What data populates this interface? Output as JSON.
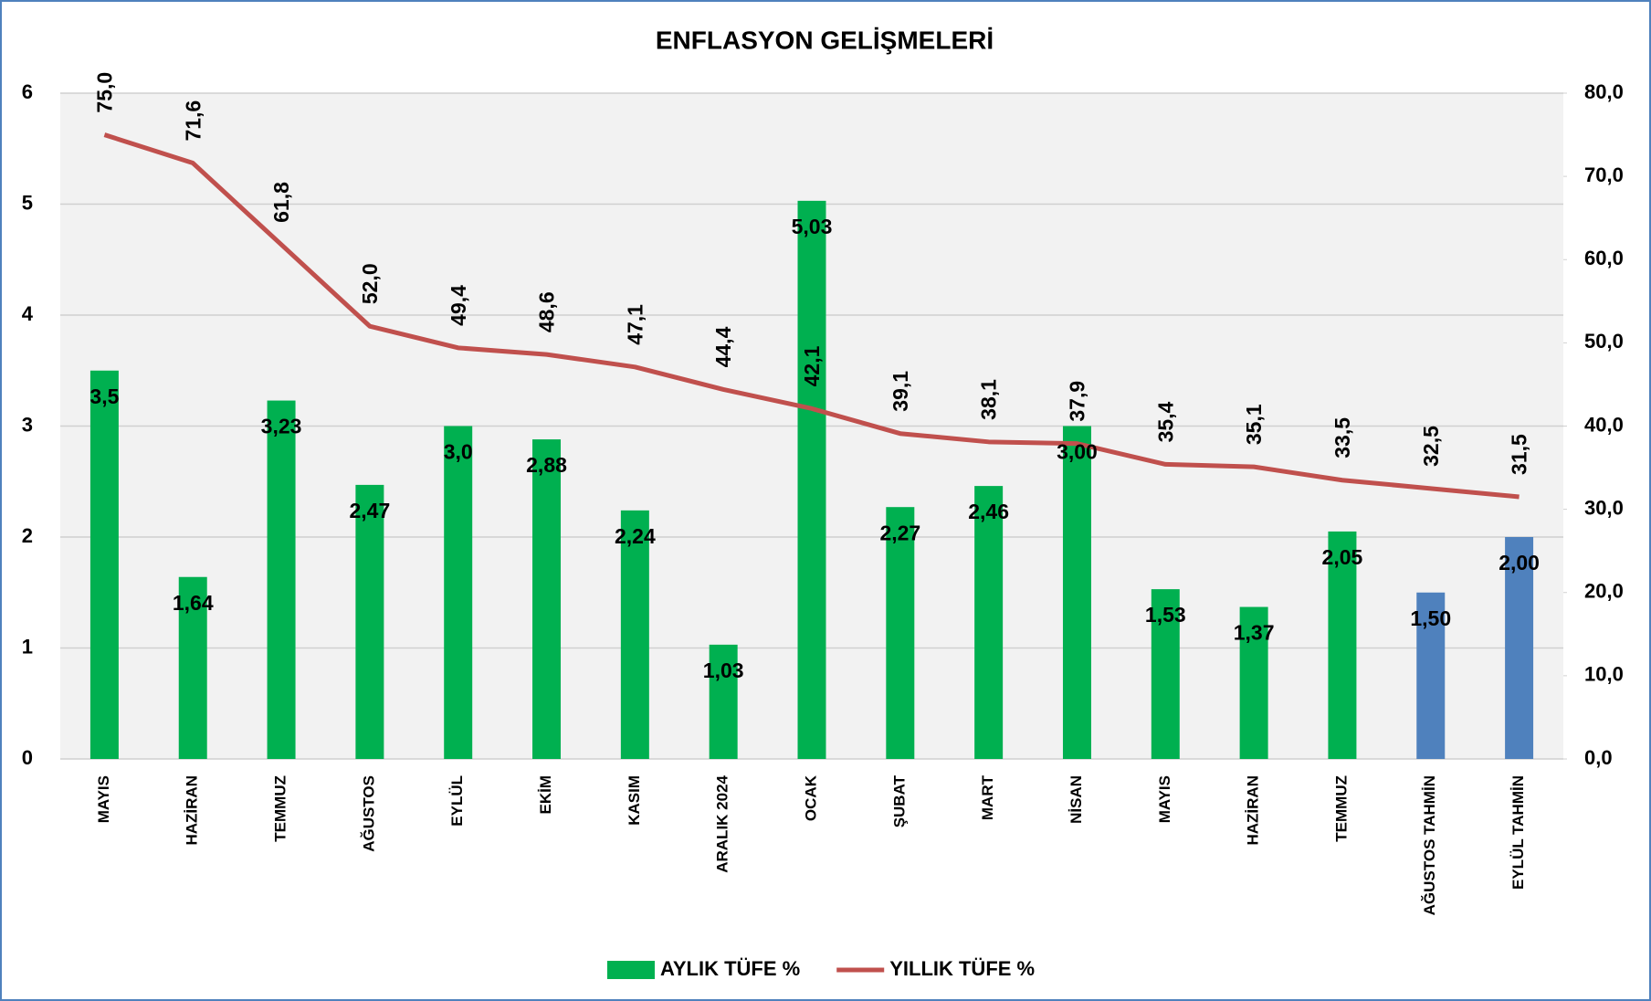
{
  "chart_data": {
    "type": "bar_line",
    "title": "ENFLASYON GELİŞMELERİ",
    "categories": [
      "MAYIS",
      "HAZİRAN",
      "TEMMUZ",
      "AĞUSTOS",
      "EYLÜL",
      "EKİM",
      "KASIM",
      "ARALIK 2024",
      "OCAK",
      "ŞUBAT",
      "MART",
      "NİSAN",
      "MAYIS",
      "HAZİRAN",
      "TEMMUZ",
      "AĞUSTOS TAHMİN",
      "EYLÜL TAHMİN"
    ],
    "series": [
      {
        "name": "AYLIK TÜFE %",
        "type": "bar",
        "color": "#00b050",
        "colors": [
          "#00b050",
          "#00b050",
          "#00b050",
          "#00b050",
          "#00b050",
          "#00b050",
          "#00b050",
          "#00b050",
          "#00b050",
          "#00b050",
          "#00b050",
          "#00b050",
          "#00b050",
          "#00b050",
          "#00b050",
          "#4f81bd",
          "#4f81bd"
        ],
        "values": [
          3.5,
          1.64,
          3.23,
          2.47,
          3.0,
          2.88,
          2.24,
          1.03,
          5.03,
          2.27,
          2.46,
          3.0,
          1.53,
          1.37,
          2.05,
          1.5,
          2.0
        ],
        "value_labels": [
          "3,5",
          "1,64",
          "3,23",
          "2,47",
          "3,0",
          "2,88",
          "2,24",
          "1,03",
          "5,03",
          "2,27",
          "2,46",
          "3,00",
          "1,53",
          "1,37",
          "2,05",
          "1,50",
          "2,00"
        ]
      },
      {
        "name": "YILLIK TÜFE %",
        "type": "line",
        "axis": "y2",
        "color": "#c0504d",
        "values": [
          75.0,
          71.6,
          61.8,
          52.0,
          49.4,
          48.6,
          47.1,
          44.4,
          42.1,
          39.1,
          38.1,
          37.9,
          35.4,
          35.1,
          33.5,
          32.5,
          31.5
        ],
        "value_labels": [
          "75,0",
          "71,6",
          "61,8",
          "52,0",
          "49,4",
          "48,6",
          "47,1",
          "44,4",
          "42,1",
          "39,1",
          "38,1",
          "37,9",
          "35,4",
          "35,1",
          "33,5",
          "32,5",
          "31,5"
        ]
      }
    ],
    "ylim": [
      0,
      6
    ],
    "yticks": [
      0,
      1,
      2,
      3,
      4,
      5,
      6
    ],
    "y2lim": [
      0,
      80
    ],
    "y2ticks": [
      {
        "value": 0,
        "label": "0,0"
      },
      {
        "value": 10,
        "label": "10,0"
      },
      {
        "value": 20,
        "label": "20,0"
      },
      {
        "value": 30,
        "label": "30,0"
      },
      {
        "value": 40,
        "label": "40,0"
      },
      {
        "value": 50,
        "label": "50,0"
      },
      {
        "value": 60,
        "label": "60,0"
      },
      {
        "value": 70,
        "label": "70,0"
      },
      {
        "value": 80,
        "label": "80,0"
      }
    ],
    "grid": true,
    "legend": "bottom"
  }
}
